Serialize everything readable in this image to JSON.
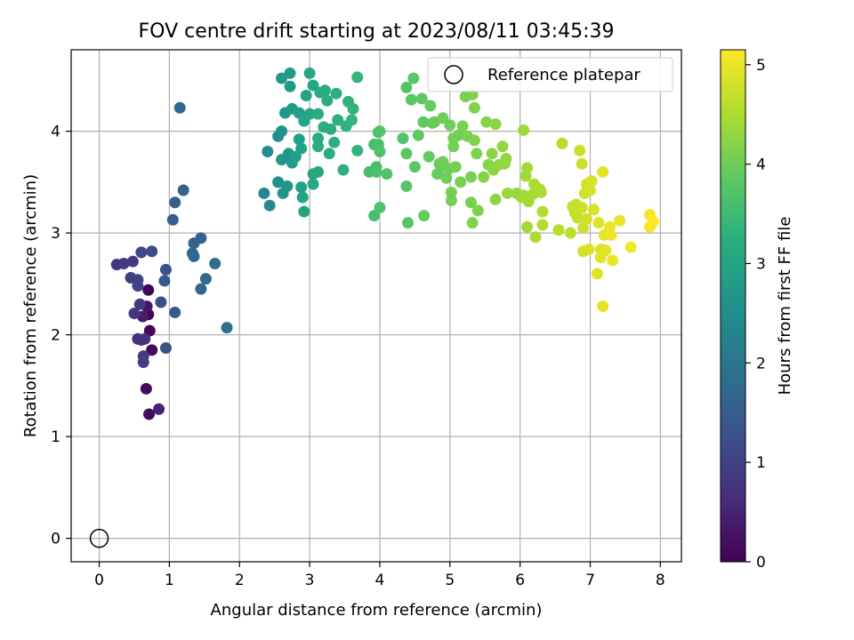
{
  "chart_data": {
    "type": "scatter",
    "title": "FOV centre drift starting at 2023/08/11 03:45:39",
    "xlabel": "Angular distance from reference (arcmin)",
    "ylabel": "Rotation from reference (arcmin)",
    "xlim": [
      -0.4,
      8.3
    ],
    "ylim": [
      -0.23,
      4.8
    ],
    "xticks": [
      0,
      1,
      2,
      3,
      4,
      5,
      6,
      7,
      8
    ],
    "yticks": [
      0,
      1,
      2,
      3,
      4
    ],
    "grid": true,
    "legend": {
      "position": "top-right",
      "entries": [
        "Reference platepar"
      ]
    },
    "reference_point": {
      "x": 0,
      "y": 0,
      "label": "Reference platepar"
    },
    "colorbar": {
      "label": "Hours from first FF file",
      "colormap": "viridis",
      "range": [
        0,
        5.15
      ],
      "ticks": [
        0,
        1,
        2,
        3,
        4,
        5
      ]
    },
    "points": [
      {
        "x": 0.7,
        "y": 2.44,
        "c": 0.05
      },
      {
        "x": 0.7,
        "y": 2.2,
        "c": 0.08
      },
      {
        "x": 0.72,
        "y": 2.04,
        "c": 0.1
      },
      {
        "x": 0.75,
        "y": 1.85,
        "c": 0.12
      },
      {
        "x": 0.67,
        "y": 1.47,
        "c": 0.14
      },
      {
        "x": 0.71,
        "y": 1.22,
        "c": 0.16
      },
      {
        "x": 0.68,
        "y": 2.28,
        "c": 0.3
      },
      {
        "x": 0.62,
        "y": 2.18,
        "c": 0.4
      },
      {
        "x": 0.85,
        "y": 1.27,
        "c": 0.5
      },
      {
        "x": 0.6,
        "y": 1.95,
        "c": 0.6
      },
      {
        "x": 0.55,
        "y": 1.96,
        "c": 0.7
      },
      {
        "x": 0.65,
        "y": 1.96,
        "c": 0.75
      },
      {
        "x": 0.5,
        "y": 2.21,
        "c": 0.8
      },
      {
        "x": 0.58,
        "y": 2.3,
        "c": 0.85
      },
      {
        "x": 0.63,
        "y": 1.79,
        "c": 0.9
      },
      {
        "x": 0.63,
        "y": 1.73,
        "c": 0.95
      },
      {
        "x": 0.25,
        "y": 2.69,
        "c": 0.8
      },
      {
        "x": 0.35,
        "y": 2.7,
        "c": 0.85
      },
      {
        "x": 0.48,
        "y": 2.72,
        "c": 0.9
      },
      {
        "x": 0.45,
        "y": 2.56,
        "c": 0.95
      },
      {
        "x": 0.55,
        "y": 2.54,
        "c": 1.0
      },
      {
        "x": 0.55,
        "y": 2.48,
        "c": 1.05
      },
      {
        "x": 0.6,
        "y": 2.81,
        "c": 1.1
      },
      {
        "x": 0.75,
        "y": 2.82,
        "c": 1.15
      },
      {
        "x": 0.88,
        "y": 2.32,
        "c": 1.2
      },
      {
        "x": 0.95,
        "y": 1.87,
        "c": 1.25
      },
      {
        "x": 0.95,
        "y": 2.64,
        "c": 1.3
      },
      {
        "x": 0.93,
        "y": 2.53,
        "c": 1.4
      },
      {
        "x": 1.08,
        "y": 2.22,
        "c": 1.45
      },
      {
        "x": 1.05,
        "y": 3.13,
        "c": 1.5
      },
      {
        "x": 1.08,
        "y": 3.3,
        "c": 1.55
      },
      {
        "x": 1.2,
        "y": 3.42,
        "c": 1.6
      },
      {
        "x": 1.15,
        "y": 4.23,
        "c": 1.7
      },
      {
        "x": 1.35,
        "y": 2.9,
        "c": 1.6
      },
      {
        "x": 1.33,
        "y": 2.8,
        "c": 1.65
      },
      {
        "x": 1.35,
        "y": 2.77,
        "c": 1.7
      },
      {
        "x": 1.45,
        "y": 2.95,
        "c": 1.6
      },
      {
        "x": 1.45,
        "y": 2.45,
        "c": 1.7
      },
      {
        "x": 1.52,
        "y": 2.55,
        "c": 1.75
      },
      {
        "x": 1.65,
        "y": 2.7,
        "c": 1.85
      },
      {
        "x": 1.82,
        "y": 2.07,
        "c": 1.9
      },
      {
        "x": 2.35,
        "y": 3.39,
        "c": 2.4
      },
      {
        "x": 2.43,
        "y": 3.27,
        "c": 2.45
      },
      {
        "x": 2.4,
        "y": 3.8,
        "c": 2.5
      },
      {
        "x": 2.55,
        "y": 3.95,
        "c": 2.55
      },
      {
        "x": 2.6,
        "y": 4.0,
        "c": 2.6
      },
      {
        "x": 2.55,
        "y": 3.5,
        "c": 2.6
      },
      {
        "x": 2.62,
        "y": 3.39,
        "c": 2.65
      },
      {
        "x": 2.68,
        "y": 3.46,
        "c": 2.65
      },
      {
        "x": 2.6,
        "y": 3.72,
        "c": 2.7
      },
      {
        "x": 2.7,
        "y": 3.78,
        "c": 2.7
      },
      {
        "x": 2.65,
        "y": 4.18,
        "c": 2.75
      },
      {
        "x": 2.6,
        "y": 4.52,
        "c": 2.75
      },
      {
        "x": 2.72,
        "y": 4.44,
        "c": 2.8
      },
      {
        "x": 2.72,
        "y": 4.57,
        "c": 2.8
      },
      {
        "x": 2.75,
        "y": 4.22,
        "c": 2.85
      },
      {
        "x": 2.75,
        "y": 3.69,
        "c": 2.85
      },
      {
        "x": 2.8,
        "y": 3.75,
        "c": 2.9
      },
      {
        "x": 2.85,
        "y": 3.92,
        "c": 2.9
      },
      {
        "x": 2.88,
        "y": 3.83,
        "c": 2.95
      },
      {
        "x": 2.88,
        "y": 3.45,
        "c": 2.95
      },
      {
        "x": 2.9,
        "y": 3.35,
        "c": 3.0
      },
      {
        "x": 2.92,
        "y": 3.21,
        "c": 3.0
      },
      {
        "x": 2.85,
        "y": 4.18,
        "c": 2.9
      },
      {
        "x": 2.92,
        "y": 4.1,
        "c": 3.0
      },
      {
        "x": 2.95,
        "y": 4.35,
        "c": 3.0
      },
      {
        "x": 3.0,
        "y": 4.57,
        "c": 3.05
      },
      {
        "x": 3.05,
        "y": 4.45,
        "c": 3.05
      },
      {
        "x": 3.0,
        "y": 4.17,
        "c": 3.05
      },
      {
        "x": 3.05,
        "y": 3.58,
        "c": 3.1
      },
      {
        "x": 3.05,
        "y": 3.48,
        "c": 3.1
      },
      {
        "x": 3.12,
        "y": 3.6,
        "c": 3.1
      },
      {
        "x": 3.12,
        "y": 3.93,
        "c": 3.15
      },
      {
        "x": 3.12,
        "y": 3.85,
        "c": 3.15
      },
      {
        "x": 3.12,
        "y": 4.17,
        "c": 3.15
      },
      {
        "x": 3.15,
        "y": 4.38,
        "c": 3.15
      },
      {
        "x": 3.22,
        "y": 4.4,
        "c": 3.2
      },
      {
        "x": 3.2,
        "y": 4.04,
        "c": 3.2
      },
      {
        "x": 3.25,
        "y": 4.3,
        "c": 3.2
      },
      {
        "x": 3.3,
        "y": 4.02,
        "c": 3.2
      },
      {
        "x": 3.28,
        "y": 3.78,
        "c": 3.2
      },
      {
        "x": 3.35,
        "y": 3.89,
        "c": 3.25
      },
      {
        "x": 3.38,
        "y": 4.37,
        "c": 3.25
      },
      {
        "x": 3.4,
        "y": 4.11,
        "c": 3.25
      },
      {
        "x": 3.48,
        "y": 3.62,
        "c": 3.25
      },
      {
        "x": 3.52,
        "y": 4.05,
        "c": 3.3
      },
      {
        "x": 3.55,
        "y": 4.29,
        "c": 3.3
      },
      {
        "x": 3.62,
        "y": 4.22,
        "c": 3.35
      },
      {
        "x": 3.6,
        "y": 4.11,
        "c": 3.35
      },
      {
        "x": 3.68,
        "y": 4.53,
        "c": 3.4
      },
      {
        "x": 3.68,
        "y": 3.81,
        "c": 3.35
      },
      {
        "x": 3.85,
        "y": 3.6,
        "c": 3.6
      },
      {
        "x": 3.92,
        "y": 3.17,
        "c": 3.6
      },
      {
        "x": 3.92,
        "y": 3.87,
        "c": 3.55
      },
      {
        "x": 3.95,
        "y": 3.65,
        "c": 3.6
      },
      {
        "x": 3.95,
        "y": 3.6,
        "c": 3.65
      },
      {
        "x": 3.98,
        "y": 3.99,
        "c": 3.6
      },
      {
        "x": 3.98,
        "y": 3.87,
        "c": 3.65
      },
      {
        "x": 4.0,
        "y": 4.0,
        "c": 3.7
      },
      {
        "x": 4.0,
        "y": 3.8,
        "c": 3.7
      },
      {
        "x": 4.0,
        "y": 3.25,
        "c": 3.7
      },
      {
        "x": 4.1,
        "y": 3.58,
        "c": 3.7
      },
      {
        "x": 4.33,
        "y": 3.93,
        "c": 3.7
      },
      {
        "x": 4.38,
        "y": 4.43,
        "c": 3.75
      },
      {
        "x": 4.38,
        "y": 3.46,
        "c": 3.75
      },
      {
        "x": 4.4,
        "y": 3.1,
        "c": 3.75
      },
      {
        "x": 4.38,
        "y": 3.78,
        "c": 3.8
      },
      {
        "x": 4.48,
        "y": 4.52,
        "c": 3.8
      },
      {
        "x": 4.5,
        "y": 3.65,
        "c": 3.8
      },
      {
        "x": 4.55,
        "y": 3.96,
        "c": 3.85
      },
      {
        "x": 4.45,
        "y": 4.31,
        "c": 3.8
      },
      {
        "x": 4.6,
        "y": 4.32,
        "c": 3.85
      },
      {
        "x": 4.62,
        "y": 4.09,
        "c": 3.85
      },
      {
        "x": 4.63,
        "y": 3.17,
        "c": 3.9
      },
      {
        "x": 4.7,
        "y": 3.75,
        "c": 3.9
      },
      {
        "x": 4.72,
        "y": 4.25,
        "c": 3.9
      },
      {
        "x": 4.75,
        "y": 4.08,
        "c": 3.9
      },
      {
        "x": 4.78,
        "y": 4.09,
        "c": 3.95
      },
      {
        "x": 4.82,
        "y": 3.58,
        "c": 3.95
      },
      {
        "x": 4.85,
        "y": 3.68,
        "c": 3.95
      },
      {
        "x": 4.88,
        "y": 3.65,
        "c": 3.95
      },
      {
        "x": 4.9,
        "y": 3.7,
        "c": 4.0
      },
      {
        "x": 4.9,
        "y": 4.13,
        "c": 4.0
      },
      {
        "x": 4.95,
        "y": 3.54,
        "c": 4.0
      },
      {
        "x": 4.98,
        "y": 3.63,
        "c": 4.0
      },
      {
        "x": 5.0,
        "y": 4.06,
        "c": 4.0
      },
      {
        "x": 5.02,
        "y": 3.4,
        "c": 4.05
      },
      {
        "x": 5.02,
        "y": 3.32,
        "c": 4.05
      },
      {
        "x": 5.05,
        "y": 3.93,
        "c": 4.05
      },
      {
        "x": 5.05,
        "y": 3.85,
        "c": 4.05
      },
      {
        "x": 5.08,
        "y": 3.65,
        "c": 4.05
      },
      {
        "x": 5.12,
        "y": 3.96,
        "c": 4.05
      },
      {
        "x": 5.15,
        "y": 3.5,
        "c": 4.1
      },
      {
        "x": 5.18,
        "y": 4.05,
        "c": 4.1
      },
      {
        "x": 5.22,
        "y": 4.34,
        "c": 4.1
      },
      {
        "x": 5.25,
        "y": 3.95,
        "c": 4.1
      },
      {
        "x": 5.3,
        "y": 3.55,
        "c": 4.1
      },
      {
        "x": 5.3,
        "y": 3.3,
        "c": 4.1
      },
      {
        "x": 5.32,
        "y": 3.1,
        "c": 4.15
      },
      {
        "x": 5.32,
        "y": 4.36,
        "c": 4.15
      },
      {
        "x": 5.35,
        "y": 4.23,
        "c": 4.15
      },
      {
        "x": 5.35,
        "y": 3.91,
        "c": 4.15
      },
      {
        "x": 5.38,
        "y": 3.78,
        "c": 4.15
      },
      {
        "x": 5.4,
        "y": 3.22,
        "c": 4.15
      },
      {
        "x": 5.48,
        "y": 3.55,
        "c": 4.2
      },
      {
        "x": 5.52,
        "y": 4.09,
        "c": 4.2
      },
      {
        "x": 5.55,
        "y": 3.67,
        "c": 4.2
      },
      {
        "x": 5.6,
        "y": 3.78,
        "c": 4.25
      },
      {
        "x": 5.62,
        "y": 3.62,
        "c": 4.25
      },
      {
        "x": 5.65,
        "y": 3.33,
        "c": 4.25
      },
      {
        "x": 5.65,
        "y": 4.07,
        "c": 4.25
      },
      {
        "x": 5.7,
        "y": 3.67,
        "c": 4.3
      },
      {
        "x": 5.75,
        "y": 3.85,
        "c": 4.3
      },
      {
        "x": 5.78,
        "y": 3.68,
        "c": 4.3
      },
      {
        "x": 5.8,
        "y": 3.73,
        "c": 4.3
      },
      {
        "x": 5.82,
        "y": 3.39,
        "c": 4.35
      },
      {
        "x": 5.95,
        "y": 3.39,
        "c": 4.35
      },
      {
        "x": 6.02,
        "y": 3.35,
        "c": 4.4
      },
      {
        "x": 6.05,
        "y": 3.37,
        "c": 4.4
      },
      {
        "x": 6.05,
        "y": 4.01,
        "c": 4.4
      },
      {
        "x": 6.08,
        "y": 3.56,
        "c": 4.4
      },
      {
        "x": 6.1,
        "y": 3.64,
        "c": 4.45
      },
      {
        "x": 6.1,
        "y": 3.06,
        "c": 4.45
      },
      {
        "x": 6.12,
        "y": 3.31,
        "c": 4.45
      },
      {
        "x": 6.18,
        "y": 3.38,
        "c": 4.45
      },
      {
        "x": 6.2,
        "y": 3.48,
        "c": 4.5
      },
      {
        "x": 6.22,
        "y": 2.96,
        "c": 4.5
      },
      {
        "x": 6.28,
        "y": 3.43,
        "c": 4.5
      },
      {
        "x": 6.3,
        "y": 3.4,
        "c": 4.5
      },
      {
        "x": 6.32,
        "y": 3.21,
        "c": 4.55
      },
      {
        "x": 6.32,
        "y": 3.08,
        "c": 4.55
      },
      {
        "x": 6.55,
        "y": 3.03,
        "c": 4.6
      },
      {
        "x": 6.6,
        "y": 3.88,
        "c": 4.6
      },
      {
        "x": 6.72,
        "y": 3.0,
        "c": 4.65
      },
      {
        "x": 6.75,
        "y": 3.26,
        "c": 4.65
      },
      {
        "x": 6.78,
        "y": 3.2,
        "c": 4.7
      },
      {
        "x": 6.8,
        "y": 3.28,
        "c": 4.7
      },
      {
        "x": 6.82,
        "y": 3.22,
        "c": 4.7
      },
      {
        "x": 6.82,
        "y": 3.15,
        "c": 4.7
      },
      {
        "x": 6.85,
        "y": 3.81,
        "c": 4.75
      },
      {
        "x": 6.88,
        "y": 3.68,
        "c": 4.75
      },
      {
        "x": 6.88,
        "y": 3.25,
        "c": 4.75
      },
      {
        "x": 6.9,
        "y": 3.05,
        "c": 4.75
      },
      {
        "x": 6.9,
        "y": 2.82,
        "c": 4.8
      },
      {
        "x": 6.92,
        "y": 3.39,
        "c": 4.8
      },
      {
        "x": 6.95,
        "y": 3.48,
        "c": 4.8
      },
      {
        "x": 6.95,
        "y": 3.14,
        "c": 4.8
      },
      {
        "x": 6.98,
        "y": 2.84,
        "c": 4.85
      },
      {
        "x": 7.0,
        "y": 3.42,
        "c": 4.85
      },
      {
        "x": 7.02,
        "y": 3.51,
        "c": 4.85
      },
      {
        "x": 7.05,
        "y": 3.23,
        "c": 4.85
      },
      {
        "x": 7.1,
        "y": 2.6,
        "c": 4.9
      },
      {
        "x": 7.12,
        "y": 3.1,
        "c": 4.9
      },
      {
        "x": 7.15,
        "y": 2.84,
        "c": 4.9
      },
      {
        "x": 7.15,
        "y": 2.76,
        "c": 4.9
      },
      {
        "x": 7.18,
        "y": 3.6,
        "c": 4.95
      },
      {
        "x": 7.18,
        "y": 2.28,
        "c": 4.95
      },
      {
        "x": 7.2,
        "y": 2.98,
        "c": 4.95
      },
      {
        "x": 7.22,
        "y": 2.83,
        "c": 4.95
      },
      {
        "x": 7.28,
        "y": 3.06,
        "c": 5.0
      },
      {
        "x": 7.3,
        "y": 2.98,
        "c": 5.0
      },
      {
        "x": 7.32,
        "y": 2.73,
        "c": 5.0
      },
      {
        "x": 7.42,
        "y": 3.12,
        "c": 5.0
      },
      {
        "x": 7.58,
        "y": 2.86,
        "c": 5.05
      },
      {
        "x": 7.85,
        "y": 3.18,
        "c": 5.1
      },
      {
        "x": 7.85,
        "y": 3.06,
        "c": 5.1
      },
      {
        "x": 7.9,
        "y": 3.11,
        "c": 5.15
      }
    ]
  }
}
